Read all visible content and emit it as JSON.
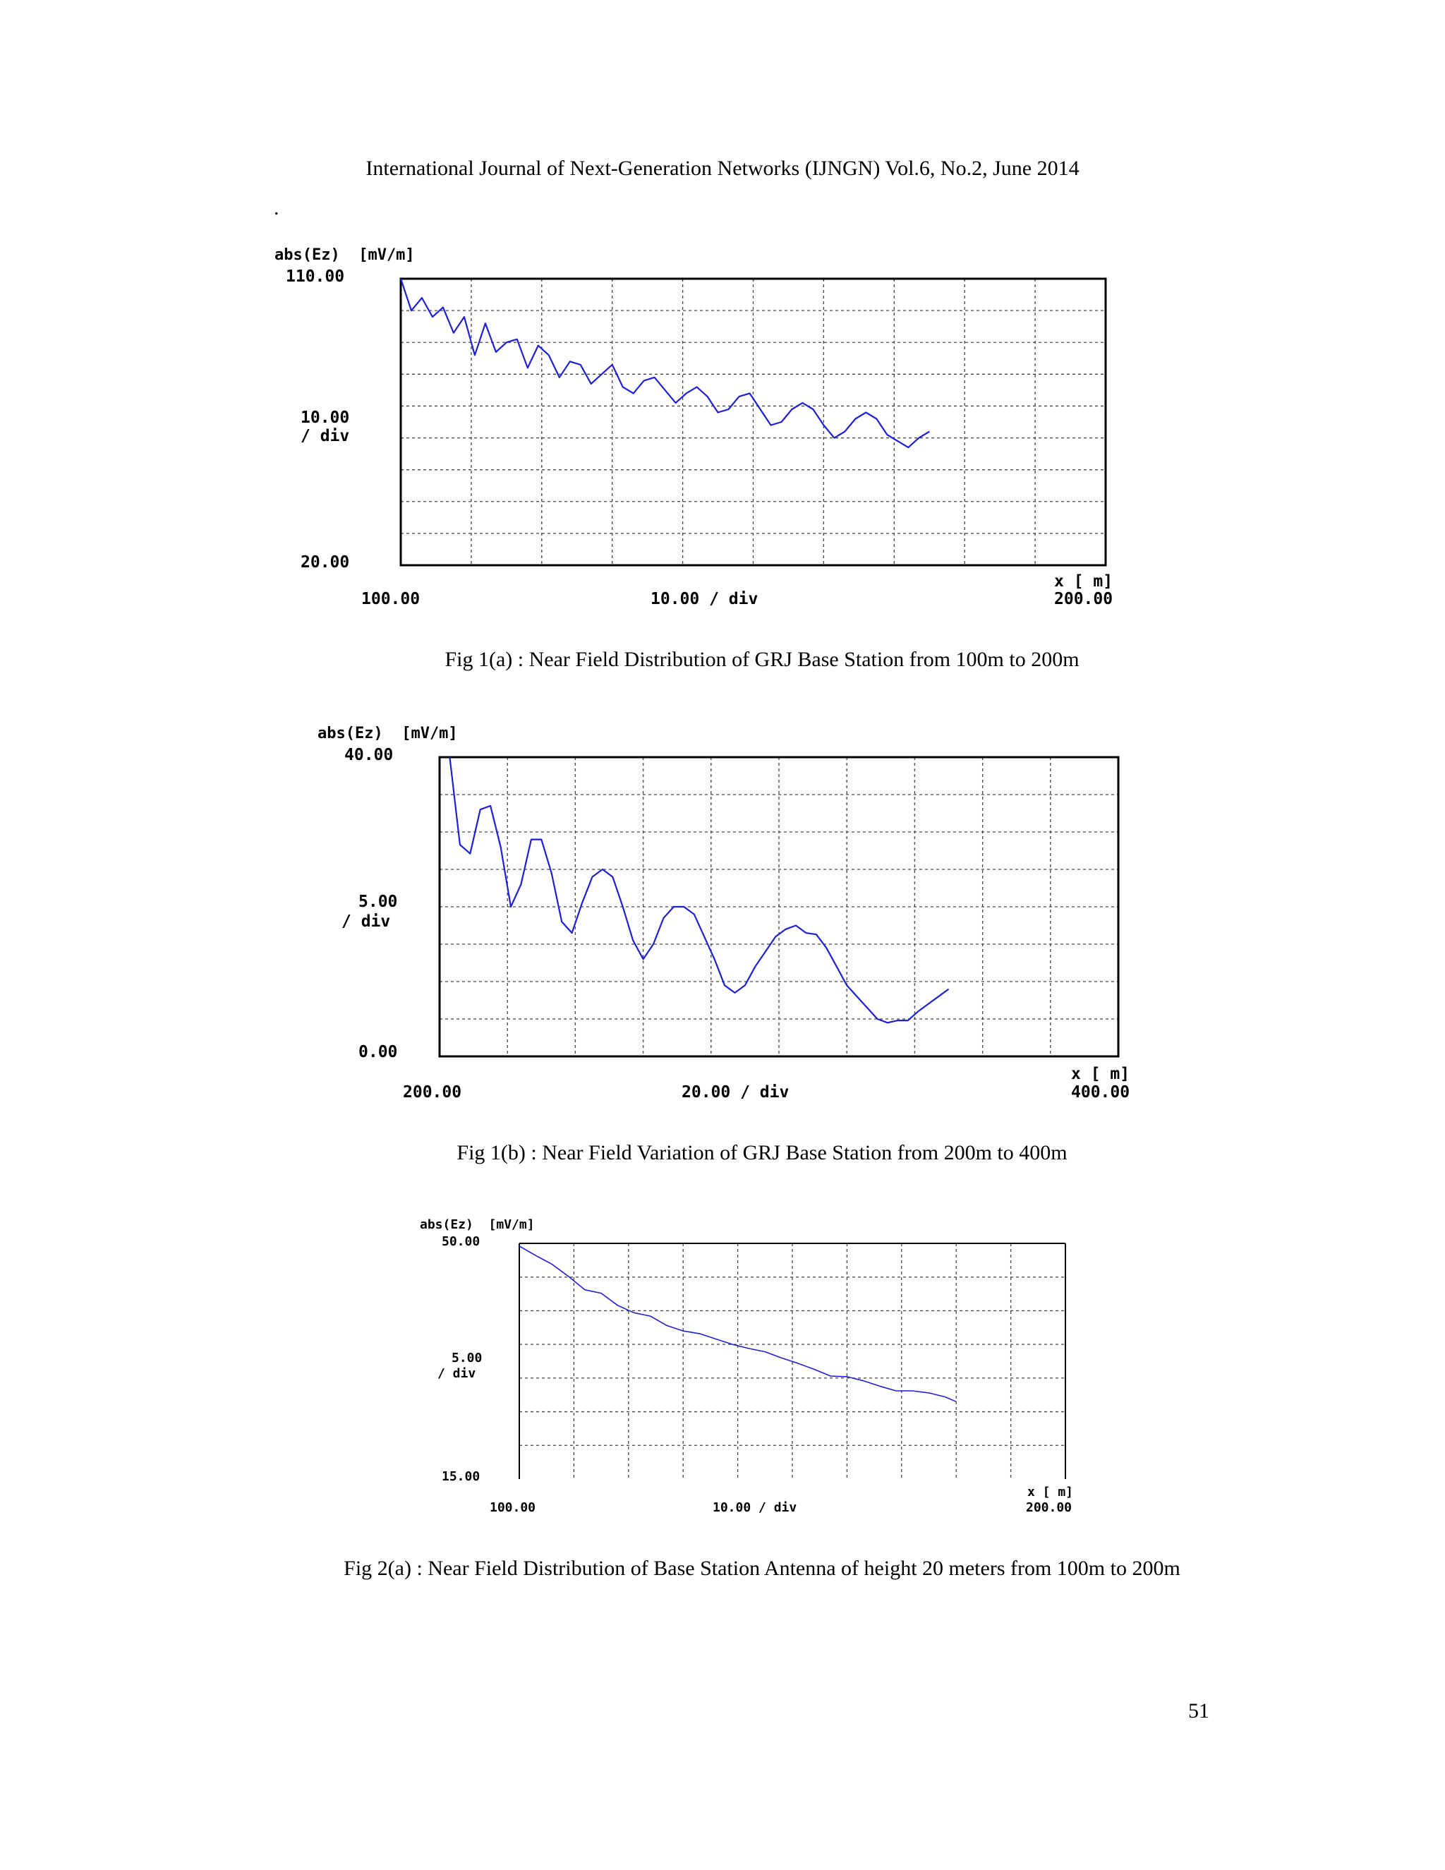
{
  "header": "International Journal of Next-Generation Networks (IJNGN) Vol.6, No.2, June 2014",
  "stray_mark": ".",
  "page_number": "51",
  "figures": [
    {
      "caption": "Fig 1(a) : Near Field Distribution of GRJ Base Station from 100m to 200m",
      "labels": {
        "ylabel": "abs(Ez)  [mV/m]",
        "ytop": "110.00",
        "ydiv_value": "10.00",
        "ydiv_unit": "/ div",
        "ybottom": "20.00",
        "xunit": "x [ m]",
        "xleft": "100.00",
        "xdiv": "10.00 / div",
        "xright": "200.00"
      }
    },
    {
      "caption": "Fig 1(b) : Near Field Variation of GRJ Base Station from 200m to 400m",
      "labels": {
        "ylabel": "abs(Ez)  [mV/m]",
        "ytop": "40.00",
        "ydiv_value": "5.00",
        "ydiv_unit": "/ div",
        "ybottom": "0.00",
        "xunit": "x [ m]",
        "xleft": "200.00",
        "xdiv": "20.00 / div",
        "xright": "400.00"
      }
    },
    {
      "caption": "Fig 2(a) : Near Field Distribution of Base Station Antenna of height 20 meters from 100m to 200m",
      "labels": {
        "ylabel": "abs(Ez)  [mV/m]",
        "ytop": "50.00",
        "ydiv_value": "5.00",
        "ydiv_unit": "/ div",
        "ybottom": "15.00",
        "xunit": "x [ m]",
        "xleft": "100.00",
        "xdiv": "10.00 / div",
        "xright": "200.00"
      }
    }
  ],
  "chart_data": [
    {
      "type": "line",
      "xlabel": "x [ m]",
      "ylabel": "abs(Ez) [mV/m]",
      "xlim": [
        100,
        200
      ],
      "ylim": [
        20,
        110
      ],
      "x_tick_step": 10,
      "y_tick_step": 10,
      "grid": true,
      "line_color": "#1f1fd6",
      "series": [
        {
          "x": [
            100,
            101.5,
            103,
            104.5,
            106,
            107.5,
            109,
            110.5,
            112,
            113.5,
            115,
            116.5,
            118,
            119.5,
            121,
            122.5,
            124,
            125.5,
            127,
            128.5,
            130,
            131.5,
            133,
            134.5,
            136,
            137.5,
            139,
            140.5,
            142,
            143.5,
            145,
            146.5,
            148,
            149.5,
            151,
            152.5,
            154,
            155.5,
            157,
            158.5,
            160,
            161.5,
            163,
            164.5,
            166,
            167.5,
            169,
            170.5,
            172,
            173.5,
            175,
            176.5,
            178,
            179.5
          ],
          "y": [
            110,
            100,
            104,
            98,
            101,
            93,
            98,
            86,
            96,
            87,
            90,
            91,
            82,
            89,
            86,
            79,
            84,
            83,
            77,
            80,
            83,
            76,
            74,
            78,
            79,
            75,
            71,
            74,
            76,
            73,
            68,
            69,
            73,
            74,
            69,
            64,
            65,
            69,
            71,
            69,
            64,
            60,
            62,
            66,
            68,
            66,
            61,
            59,
            57,
            60,
            62,
            null,
            null,
            null
          ]
        }
      ]
    },
    {
      "type": "line",
      "xlabel": "x [ m]",
      "ylabel": "abs(Ez) [mV/m]",
      "xlim": [
        200,
        400
      ],
      "ylim": [
        0,
        40
      ],
      "x_tick_step": 20,
      "y_tick_step": 5,
      "grid": true,
      "line_color": "#1f1fd6",
      "series": [
        {
          "x": [
            203,
            206,
            209,
            212,
            215,
            218,
            221,
            224,
            227,
            230,
            233,
            236,
            239,
            242,
            245,
            248,
            251,
            254,
            257,
            260,
            263,
            266,
            269,
            272,
            275,
            278,
            281,
            284,
            287,
            290,
            293,
            296,
            299,
            302,
            305,
            308,
            311,
            314,
            317,
            320,
            323,
            326,
            329,
            332,
            335,
            338,
            341,
            344,
            347,
            350,
            353,
            356,
            359
          ],
          "y": [
            40,
            28.3,
            27.1,
            33.0,
            33.5,
            28.0,
            20.0,
            23.0,
            29.0,
            29.0,
            24.5,
            18.0,
            16.5,
            20.5,
            24.0,
            25.0,
            24.0,
            20.0,
            15.5,
            13.0,
            15.0,
            18.5,
            20.0,
            20.0,
            19.0,
            16.0,
            13.0,
            9.5,
            8.5,
            9.5,
            12.0,
            14.0,
            16.0,
            17.0,
            17.5,
            16.5,
            16.3,
            14.5,
            12.0,
            9.5,
            8.0,
            6.5,
            5.0,
            4.5,
            4.8,
            4.8,
            6.0,
            7.0,
            8.0,
            9.0,
            null,
            null,
            null
          ]
        }
      ]
    },
    {
      "type": "line",
      "xlabel": "x [ m]",
      "ylabel": "abs(Ez) [mV/m]",
      "xlim": [
        100,
        200
      ],
      "ylim": [
        15,
        50
      ],
      "x_tick_step": 10,
      "y_tick_step": 5,
      "grid": true,
      "line_color": "#1f1fd6",
      "series": [
        {
          "x": [
            100,
            103,
            106,
            109,
            112,
            115,
            118,
            121,
            124,
            127,
            130,
            133,
            136,
            139,
            142,
            145,
            148,
            151,
            154,
            157,
            160,
            163,
            166,
            169,
            172,
            175,
            178,
            180
          ],
          "y": [
            49.6,
            48.2,
            46.9,
            45.1,
            43.1,
            42.6,
            40.8,
            39.7,
            39.2,
            37.8,
            37.0,
            36.6,
            35.8,
            35.0,
            34.4,
            33.9,
            33.0,
            32.2,
            31.3,
            30.3,
            30.2,
            29.6,
            28.8,
            28.1,
            28.1,
            27.8,
            27.2,
            26.5
          ]
        }
      ]
    }
  ]
}
